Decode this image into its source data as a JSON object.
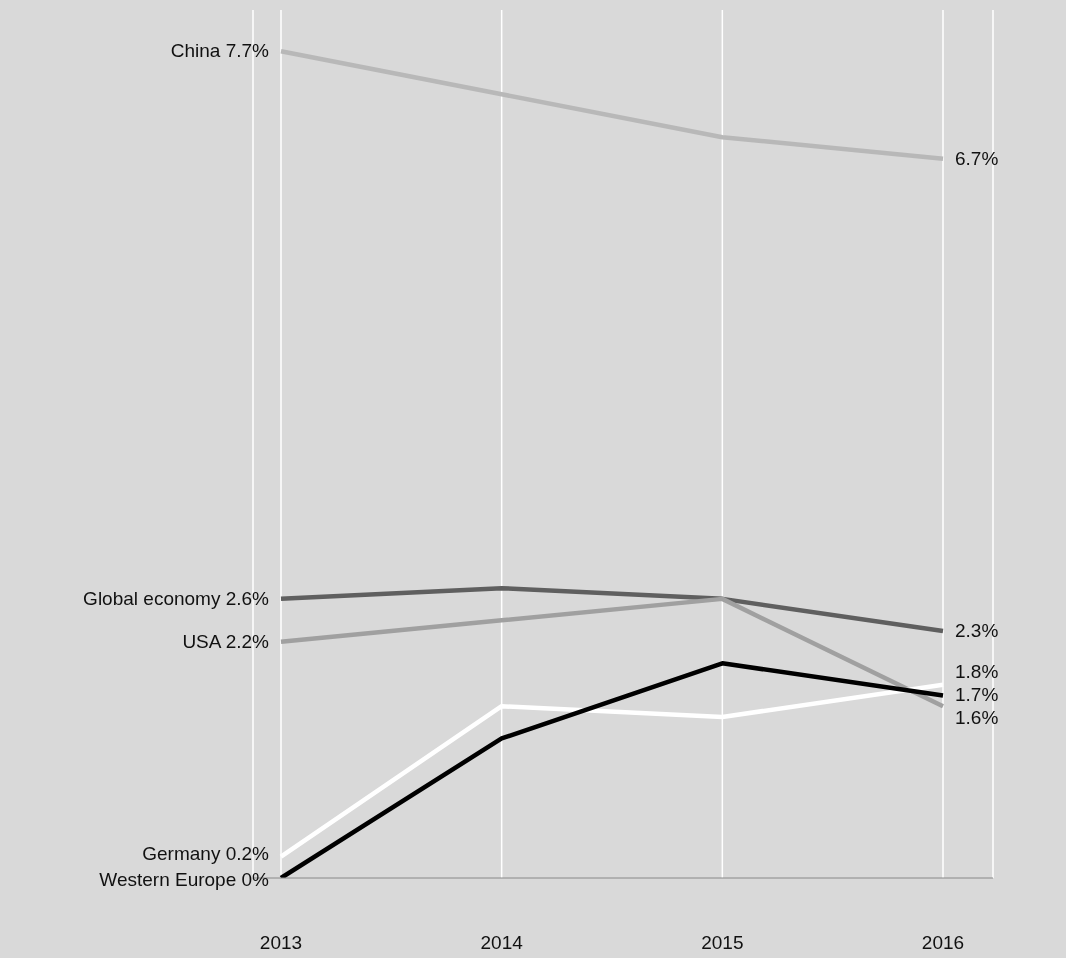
{
  "chart_data": {
    "type": "line",
    "categories": [
      "2013",
      "2014",
      "2015",
      "2016"
    ],
    "grid": "x",
    "legend": false,
    "marker": "none",
    "line_style": "solid",
    "series": [
      {
        "name": "China",
        "color": "#b8b8b8",
        "values": [
          7.7,
          7.3,
          6.9,
          6.7
        ],
        "value_labels": [
          "7.7%",
          null,
          null,
          "6.7%"
        ]
      },
      {
        "name": "Global economy",
        "color": "#5f5f5f",
        "values": [
          2.6,
          2.7,
          2.6,
          2.3
        ],
        "value_labels": [
          "2.6%",
          null,
          null,
          "2.3%"
        ]
      },
      {
        "name": "USA",
        "color": "#a0a0a0",
        "values": [
          2.2,
          2.4,
          2.6,
          1.6
        ],
        "value_labels": [
          "2.2%",
          null,
          null,
          "1.6%"
        ]
      },
      {
        "name": "Germany",
        "color": "#ffffff",
        "values": [
          0.2,
          1.6,
          1.5,
          1.8
        ],
        "value_labels": [
          "0.2%",
          null,
          null,
          "1.8%"
        ]
      },
      {
        "name": "Western Europe",
        "color": "#000000",
        "values": [
          0,
          1.3,
          2.0,
          1.7
        ],
        "value_labels": [
          "0%",
          null,
          null,
          "1.7%"
        ]
      }
    ]
  }
}
